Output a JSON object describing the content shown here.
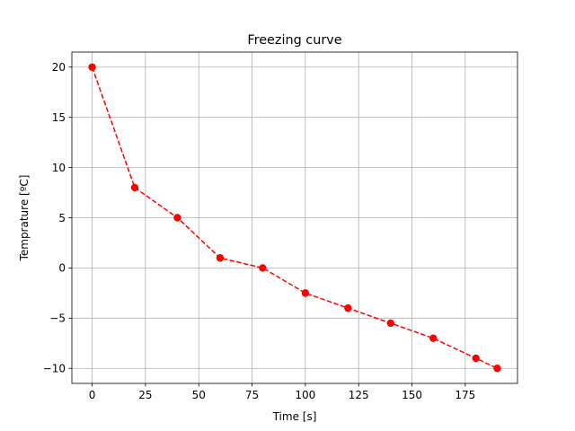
{
  "chart_data": {
    "type": "line",
    "title": "Freezing curve",
    "xlabel": "Time [s]",
    "ylabel": "Temprature [ºC]",
    "xlim": [
      -9.5,
      199.5
    ],
    "ylim": [
      -11.5,
      21.5
    ],
    "xticks": [
      0,
      25,
      50,
      75,
      100,
      125,
      150,
      175
    ],
    "yticks": [
      -10,
      -5,
      0,
      5,
      10,
      15,
      20
    ],
    "grid": true,
    "series": [
      {
        "x": [
          0,
          20,
          40,
          60,
          80,
          100,
          120,
          140,
          160,
          180,
          190
        ],
        "y": [
          20,
          8,
          5,
          1,
          0,
          -2.5,
          -4,
          -5.5,
          -7,
          -9,
          -10
        ],
        "color": "#ff0000",
        "line_style": "dashed",
        "marker": "circle"
      }
    ]
  }
}
